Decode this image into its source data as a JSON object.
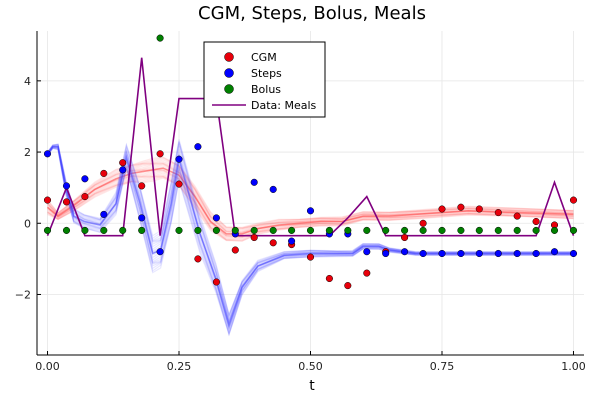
{
  "chart_data": {
    "type": "scatter",
    "title": "CGM, Steps, Bolus, Meals",
    "xlabel": "t",
    "ylabel": "",
    "xlim": [
      -0.02,
      1.02
    ],
    "ylim": [
      -3.7,
      5.4
    ],
    "xticks": [
      0.0,
      0.25,
      0.5,
      0.75,
      1.0
    ],
    "xtick_labels": [
      "0.00",
      "0.25",
      "0.50",
      "0.75",
      "1.00"
    ],
    "yticks": [
      -2,
      0,
      2,
      4
    ],
    "ytick_labels": [
      "−2",
      "0",
      "2",
      "4"
    ],
    "grid": true,
    "legend_position": "top-center",
    "series": [
      {
        "name": "CGM",
        "kind": "points",
        "color": "#e8000b",
        "x": [
          0.0,
          0.036,
          0.071,
          0.107,
          0.143,
          0.179,
          0.214,
          0.25,
          0.286,
          0.321,
          0.357,
          0.393,
          0.429,
          0.464,
          0.5,
          0.536,
          0.571,
          0.607,
          0.643,
          0.679,
          0.714,
          0.75,
          0.786,
          0.821,
          0.857,
          0.893,
          0.929,
          0.964,
          1.0
        ],
        "y": [
          0.65,
          0.6,
          0.75,
          1.4,
          1.7,
          1.05,
          1.95,
          1.1,
          -1.0,
          -1.65,
          -0.75,
          -0.4,
          -0.55,
          -0.6,
          -0.95,
          -1.55,
          -1.75,
          -1.4,
          -0.8,
          -0.4,
          0.0,
          0.4,
          0.45,
          0.4,
          0.3,
          0.2,
          0.05,
          -0.05,
          0.65
        ]
      },
      {
        "name": "Steps",
        "kind": "points",
        "color": "#0000ff",
        "x": [
          0.0,
          0.036,
          0.071,
          0.107,
          0.143,
          0.179,
          0.214,
          0.25,
          0.286,
          0.321,
          0.357,
          0.393,
          0.429,
          0.464,
          0.5,
          0.536,
          0.571,
          0.607,
          0.643,
          0.679,
          0.714,
          0.75,
          0.786,
          0.821,
          0.857,
          0.893,
          0.929,
          0.964,
          1.0
        ],
        "y": [
          1.95,
          1.05,
          1.25,
          0.25,
          1.5,
          0.15,
          -0.8,
          1.8,
          2.15,
          0.15,
          -0.3,
          1.15,
          0.95,
          -0.5,
          0.35,
          -0.3,
          -0.3,
          -0.8,
          -0.85,
          -0.8,
          -0.85,
          -0.85,
          -0.85,
          -0.85,
          -0.85,
          -0.85,
          -0.85,
          -0.8,
          -0.85
        ]
      },
      {
        "name": "Bolus",
        "kind": "points",
        "color": "#008000",
        "x": [
          0.0,
          0.036,
          0.071,
          0.107,
          0.143,
          0.179,
          0.214,
          0.25,
          0.286,
          0.321,
          0.357,
          0.393,
          0.429,
          0.464,
          0.5,
          0.536,
          0.571,
          0.607,
          0.643,
          0.679,
          0.714,
          0.75,
          0.786,
          0.821,
          0.857,
          0.893,
          0.929,
          0.964,
          1.0
        ],
        "y": [
          -0.2,
          -0.2,
          -0.2,
          -0.2,
          -0.2,
          -0.2,
          5.2,
          -0.2,
          -0.2,
          -0.2,
          -0.2,
          -0.2,
          -0.2,
          -0.2,
          -0.2,
          -0.2,
          -0.2,
          -0.2,
          -0.2,
          -0.2,
          -0.2,
          -0.2,
          -0.2,
          -0.2,
          -0.2,
          -0.2,
          -0.2,
          -0.2,
          -0.2
        ]
      },
      {
        "name": "Data: Meals",
        "kind": "line",
        "color": "#800080",
        "x": [
          0.0,
          0.036,
          0.071,
          0.107,
          0.143,
          0.179,
          0.214,
          0.25,
          0.286,
          0.321,
          0.357,
          0.393,
          0.429,
          0.464,
          0.5,
          0.536,
          0.571,
          0.607,
          0.643,
          0.679,
          0.714,
          0.75,
          0.786,
          0.821,
          0.857,
          0.893,
          0.929,
          0.964,
          1.0
        ],
        "y": [
          -0.35,
          1.0,
          -0.35,
          -0.35,
          -0.35,
          4.65,
          -0.35,
          3.5,
          3.5,
          3.5,
          -0.35,
          -0.35,
          -0.35,
          -0.35,
          -0.35,
          -0.35,
          0.15,
          0.75,
          -0.35,
          -0.35,
          -0.35,
          -0.35,
          -0.35,
          -0.35,
          -0.35,
          -0.35,
          -0.35,
          1.15,
          -0.35
        ]
      }
    ],
    "bands": [
      {
        "label": "CGM",
        "color": "#ff4040",
        "x": [
          0.0,
          0.02,
          0.05,
          0.09,
          0.13,
          0.16,
          0.18,
          0.2,
          0.22,
          0.25,
          0.28,
          0.31,
          0.34,
          0.37,
          0.4,
          0.44,
          0.48,
          0.52,
          0.56,
          0.6,
          0.65,
          0.7,
          0.8,
          0.9,
          1.0
        ],
        "y": [
          0.45,
          0.2,
          0.5,
          0.95,
          1.25,
          1.4,
          1.45,
          1.5,
          1.55,
          1.35,
          0.75,
          0.05,
          -0.3,
          -0.3,
          -0.15,
          -0.05,
          0.0,
          0.05,
          0.05,
          0.2,
          0.2,
          0.25,
          0.35,
          0.3,
          0.25
        ],
        "spread": [
          0.2,
          0.1,
          0.15,
          0.2,
          0.25,
          0.25,
          0.3,
          0.3,
          0.3,
          0.3,
          0.3,
          0.25,
          0.2,
          0.2,
          0.15,
          0.15,
          0.12,
          0.12,
          0.12,
          0.12,
          0.12,
          0.12,
          0.12,
          0.12,
          0.12
        ]
      },
      {
        "label": "Steps",
        "color": "#4040ff",
        "x": [
          0.0,
          0.01,
          0.02,
          0.035,
          0.05,
          0.07,
          0.1,
          0.13,
          0.15,
          0.175,
          0.2,
          0.215,
          0.235,
          0.25,
          0.29,
          0.32,
          0.345,
          0.37,
          0.4,
          0.45,
          0.5,
          0.55,
          0.58,
          0.6,
          0.63,
          0.65,
          0.7,
          0.8,
          0.9,
          1.0
        ],
        "y": [
          1.95,
          2.15,
          2.15,
          1.0,
          0.2,
          0.05,
          -0.05,
          0.55,
          1.85,
          0.6,
          -0.85,
          -0.75,
          0.55,
          1.8,
          -0.3,
          -1.55,
          -2.85,
          -1.8,
          -1.2,
          -0.9,
          -0.85,
          -0.85,
          -0.85,
          -0.65,
          -0.65,
          -0.75,
          -0.85,
          -0.85,
          -0.85,
          -0.85
        ],
        "spread": [
          0.05,
          0.05,
          0.08,
          0.2,
          0.2,
          0.2,
          0.2,
          0.3,
          0.35,
          0.5,
          0.5,
          0.5,
          0.6,
          0.6,
          0.5,
          0.4,
          0.3,
          0.2,
          0.15,
          0.1,
          0.1,
          0.08,
          0.08,
          0.08,
          0.08,
          0.06,
          0.05,
          0.05,
          0.05,
          0.05
        ]
      }
    ]
  }
}
